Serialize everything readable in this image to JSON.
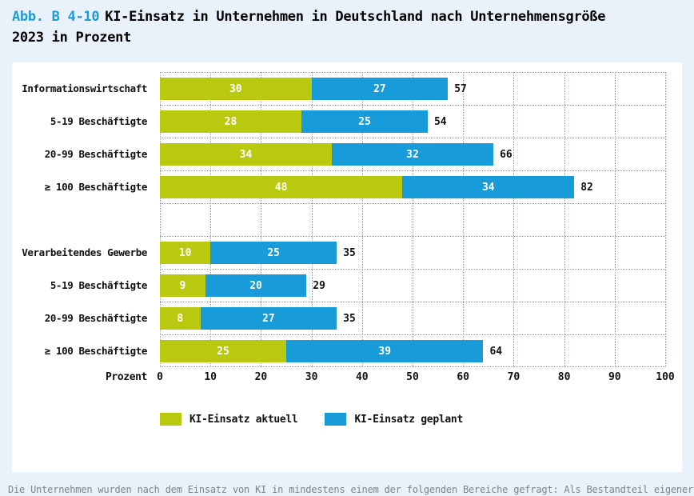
{
  "page": {
    "background": "#e9f2fa",
    "footnote": "Die Unternehmen wurden nach dem Einsatz von KI in mindestens einem der folgenden Bereiche gefragt: Als Bestandteil eigener"
  },
  "title": {
    "label": "Abb. B 4-10",
    "line1": "KI-Einsatz in Unternehmen in Deutschland nach Unternehmensgröße",
    "line2": "2023 in Prozent",
    "label_color": "#1e9cd8"
  },
  "chart_data": {
    "type": "bar",
    "orientation": "horizontal",
    "stacked": true,
    "axis_label": "Prozent",
    "xlim": [
      0,
      100
    ],
    "ticks": [
      0,
      10,
      20,
      30,
      40,
      50,
      60,
      70,
      80,
      90,
      100
    ],
    "grid": "dotted",
    "colors": {
      "aktuell": "#b9c90f",
      "geplant": "#189cd9"
    },
    "series_names": [
      "KI-Einsatz aktuell",
      "KI-Einsatz geplant"
    ],
    "rows": [
      {
        "label": "Informationswirtschaft",
        "aktuell": 30,
        "geplant": 27,
        "total": 57
      },
      {
        "label": "5-19 Beschäftigte",
        "aktuell": 28,
        "geplant": 25,
        "total": 54
      },
      {
        "label": "20-99 Beschäftigte",
        "aktuell": 34,
        "geplant": 32,
        "total": 66
      },
      {
        "label": "≥ 100 Beschäftigte",
        "aktuell": 48,
        "geplant": 34,
        "total": 82
      },
      {
        "spacer": true
      },
      {
        "label": "Verarbeitendes Gewerbe",
        "aktuell": 10,
        "geplant": 25,
        "total": 35
      },
      {
        "label": "5-19 Beschäftigte",
        "aktuell": 9,
        "geplant": 20,
        "total": 29
      },
      {
        "label": "20-99 Beschäftigte",
        "aktuell": 8,
        "geplant": 27,
        "total": 35
      },
      {
        "label": "≥ 100 Beschäftigte",
        "aktuell": 25,
        "geplant": 39,
        "total": 64
      }
    ],
    "legend": [
      {
        "label": "KI-Einsatz aktuell",
        "color": "#b9c90f"
      },
      {
        "label": "KI-Einsatz geplant",
        "color": "#189cd9"
      }
    ]
  }
}
